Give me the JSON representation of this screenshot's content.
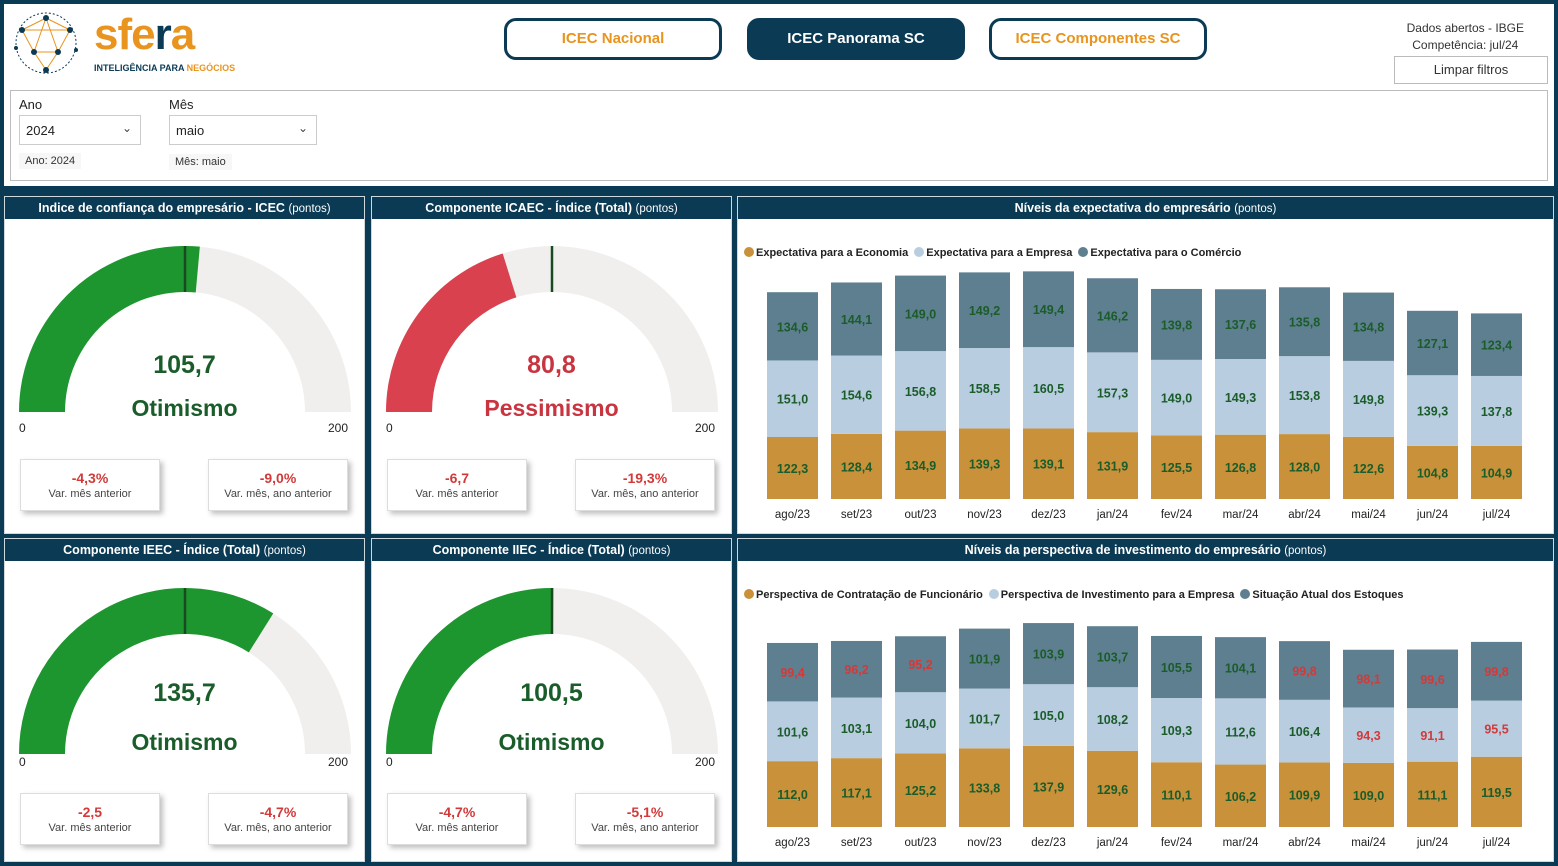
{
  "header": {
    "logo": {
      "word": "sfera",
      "sub_a": "INTELIGÊNCIA PARA ",
      "sub_b": "NEGÓCIOS"
    },
    "nav": [
      {
        "label": "ICEC Nacional",
        "active": false
      },
      {
        "label": "ICEC Panorama SC",
        "active": true
      },
      {
        "label": "ICEC Componentes SC",
        "active": false
      }
    ],
    "info_line1": "Dados abertos - IBGE",
    "info_line2": "Competência:  jul/24",
    "clear_filters": "Limpar filtros"
  },
  "filters": {
    "year_label": "Ano",
    "year_value": "2024",
    "year_note": "Ano: 2024",
    "month_label": "Mês",
    "month_value": "maio",
    "month_note": "Mês: maio"
  },
  "gauges": [
    {
      "title": "Indice de confiança do empresário - ICEC",
      "unit": "(pontos)",
      "value": 105.7,
      "value_text": "105,7",
      "status": "Otimismo",
      "color": "#1e9630",
      "text_color": "#1a5c2a",
      "target": 100,
      "min": "0",
      "max": "200",
      "cards": [
        {
          "value": "-4,3%",
          "label": "Var. mês anterior"
        },
        {
          "value": "-9,0%",
          "label": "Var. mês, ano anterior"
        }
      ]
    },
    {
      "title": "Componente ICAEC - Índice (Total)",
      "unit": "(pontos)",
      "value": 80.8,
      "value_text": "80,8",
      "status": "Pessimismo",
      "color": "#d9414f",
      "text_color": "#c8343f",
      "target": 100,
      "min": "0",
      "max": "200",
      "cards": [
        {
          "value": "-6,7",
          "label": "Var. mês anterior"
        },
        {
          "value": "-19,3%",
          "label": "Var. mês, ano anterior"
        }
      ]
    },
    {
      "title": "Componente IEEC - Índice (Total)",
      "unit": "(pontos)",
      "value": 135.7,
      "value_text": "135,7",
      "status": "Otimismo",
      "color": "#1e9630",
      "text_color": "#1a5c2a",
      "target": 100,
      "min": "0",
      "max": "200",
      "cards": [
        {
          "value": "-2,5",
          "label": "Var. mês anterior"
        },
        {
          "value": "-4,7%",
          "label": "Var. mês, ano anterior"
        }
      ]
    },
    {
      "title": "Componente IIEC - Índice (Total)",
      "unit": "(pontos)",
      "value": 100.5,
      "value_text": "100,5",
      "status": "Otimismo",
      "color": "#1e9630",
      "text_color": "#1a5c2a",
      "target": 100,
      "min": "0",
      "max": "200",
      "cards": [
        {
          "value": "-4,7%",
          "label": "Var. mês anterior"
        },
        {
          "value": "-5,1%",
          "label": "Var. mês, ano anterior"
        }
      ]
    }
  ],
  "chart_data": [
    {
      "type": "bar",
      "stacked": true,
      "title": "Níveis da expectativa do empresário",
      "unit": "(pontos)",
      "categories": [
        "ago/23",
        "set/23",
        "out/23",
        "nov/23",
        "dez/23",
        "jan/24",
        "fev/24",
        "mar/24",
        "abr/24",
        "mai/24",
        "jun/24",
        "jul/24"
      ],
      "series": [
        {
          "name": "Expectativa para a Economia",
          "color": "#c8913a",
          "label_color": "#1a5c2a",
          "values": [
            122.3,
            128.4,
            134.9,
            139.3,
            139.1,
            131.9,
            125.5,
            126.8,
            128.0,
            122.6,
            104.8,
            104.9
          ],
          "labels": [
            "122,3",
            "128,4",
            "134,9",
            "139,3",
            "139,1",
            "131,9",
            "125,5",
            "126,8",
            "128,0",
            "122,6",
            "104,8",
            "104,9"
          ]
        },
        {
          "name": "Expectativa para a Empresa",
          "color": "#b9cde0",
          "label_color": "#1a5c2a",
          "values": [
            151.0,
            154.6,
            156.8,
            158.5,
            160.5,
            157.3,
            149.0,
            149.3,
            153.8,
            149.8,
            139.3,
            137.8
          ],
          "labels": [
            "151,0",
            "154,6",
            "156,8",
            "158,5",
            "160,5",
            "157,3",
            "149,0",
            "149,3",
            "153,8",
            "149,8",
            "139,3",
            "137,8"
          ]
        },
        {
          "name": "Expectativa para o Comércio",
          "color": "#5e7f8f",
          "label_color": "#1a5c2a",
          "values": [
            134.6,
            144.1,
            149.0,
            149.2,
            149.4,
            146.2,
            139.8,
            137.6,
            135.8,
            134.8,
            127.1,
            123.4
          ],
          "labels": [
            "134,6",
            "144,1",
            "149,0",
            "149,2",
            "149,4",
            "146,2",
            "139,8",
            "137,6",
            "135,8",
            "134,8",
            "127,1",
            "123,4"
          ]
        }
      ]
    },
    {
      "type": "bar",
      "stacked": true,
      "title": "Níveis da perspectiva de investimento do empresário",
      "unit": "(pontos)",
      "categories": [
        "ago/23",
        "set/23",
        "out/23",
        "nov/23",
        "dez/23",
        "jan/24",
        "fev/24",
        "mar/24",
        "abr/24",
        "mai/24",
        "jun/24",
        "jul/24"
      ],
      "series": [
        {
          "name": "Perspectiva de Contratação de Funcionário",
          "color": "#c8913a",
          "values": [
            112.0,
            117.1,
            125.2,
            133.8,
            137.9,
            129.6,
            110.1,
            106.2,
            109.9,
            109.0,
            111.1,
            119.5
          ],
          "labels": [
            "112,0",
            "117,1",
            "125,2",
            "133,8",
            "137,9",
            "129,6",
            "110,1",
            "106,2",
            "109,9",
            "109,0",
            "111,1",
            "119,5"
          ],
          "label_colors": [
            "#1a5c2a",
            "#1a5c2a",
            "#1a5c2a",
            "#1a5c2a",
            "#1a5c2a",
            "#1a5c2a",
            "#1a5c2a",
            "#1a5c2a",
            "#1a5c2a",
            "#1a5c2a",
            "#1a5c2a",
            "#1a5c2a"
          ]
        },
        {
          "name": "Perspectiva de Investimento para a Empresa",
          "color": "#b9cde0",
          "values": [
            101.6,
            103.1,
            104.0,
            101.7,
            105.0,
            108.2,
            109.3,
            112.6,
            106.4,
            94.3,
            91.1,
            95.5
          ],
          "labels": [
            "101,6",
            "103,1",
            "104,0",
            "101,7",
            "105,0",
            "108,2",
            "109,3",
            "112,6",
            "106,4",
            "94,3",
            "91,1",
            "95,5"
          ],
          "label_colors": [
            "#1a5c2a",
            "#1a5c2a",
            "#1a5c2a",
            "#1a5c2a",
            "#1a5c2a",
            "#1a5c2a",
            "#1a5c2a",
            "#1a5c2a",
            "#1a5c2a",
            "#d23a3a",
            "#d23a3a",
            "#d23a3a"
          ]
        },
        {
          "name": "Situação Atual dos Estoques",
          "color": "#5e7f8f",
          "values": [
            99.4,
            96.2,
            95.2,
            101.9,
            103.9,
            103.7,
            105.5,
            104.1,
            99.8,
            98.1,
            99.6,
            99.8
          ],
          "labels": [
            "99,4",
            "96,2",
            "95,2",
            "101,9",
            "103,9",
            "103,7",
            "105,5",
            "104,1",
            "99,8",
            "98,1",
            "99,6",
            "99,8"
          ],
          "label_colors": [
            "#d23a3a",
            "#d23a3a",
            "#d23a3a",
            "#1a5c2a",
            "#1a5c2a",
            "#1a5c2a",
            "#1a5c2a",
            "#1a5c2a",
            "#d23a3a",
            "#d23a3a",
            "#d23a3a",
            "#d23a3a"
          ]
        }
      ]
    }
  ]
}
